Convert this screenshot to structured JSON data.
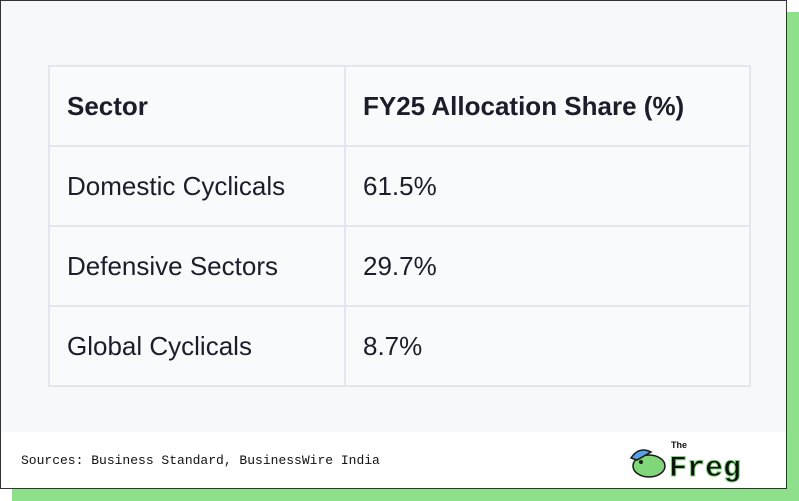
{
  "table": {
    "header": [
      "Sector",
      "FY25 Allocation Share (%)"
    ],
    "rows": [
      [
        "Domestic Cyclicals",
        "61.5%"
      ],
      [
        "Defensive Sectors",
        "29.7%"
      ],
      [
        "Global Cyclicals",
        "8.7%"
      ]
    ]
  },
  "footer": {
    "source": "Sources: Business Standard, BusinessWire India",
    "logo_small": "The",
    "logo_name": "Freg"
  }
}
